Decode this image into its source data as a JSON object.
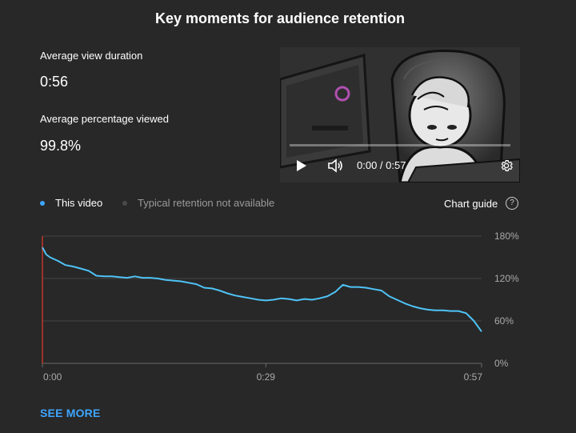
{
  "title": "Key moments for audience retention",
  "stats": {
    "avg_view_duration_label": "Average view duration",
    "avg_view_duration_value": "0:56",
    "avg_pct_viewed_label": "Average percentage viewed",
    "avg_pct_viewed_value": "99.8%"
  },
  "video": {
    "time_display": "0:00 / 0:57",
    "progress_fraction": 0.0,
    "icons": [
      "play-icon",
      "volume-icon",
      "settings-gear-icon"
    ]
  },
  "legend": {
    "this_video": "This video",
    "typical": "Typical retention not available",
    "this_video_color": "#3ea6ff",
    "typical_color": "#4a4a4a",
    "chart_guide": "Chart guide",
    "help_icon": "?"
  },
  "chart_data": {
    "type": "line",
    "title": "",
    "xlabel": "",
    "ylabel": "",
    "x_ticks": [
      "0:00",
      "0:29",
      "0:57"
    ],
    "y_ticks": [
      "180%",
      "120%",
      "60%",
      "0%"
    ],
    "xlim": [
      0,
      57
    ],
    "ylim": [
      0,
      180
    ],
    "grid": true,
    "line_color": "#4fc3f7",
    "marker_color": "#c0392b",
    "series": [
      {
        "name": "This video",
        "x": [
          0,
          0.5,
          1,
          2,
          3,
          4,
          5,
          6,
          7,
          8,
          9,
          10,
          11,
          12,
          13,
          14,
          15,
          16,
          17,
          18,
          19,
          20,
          21,
          22,
          23,
          24,
          25,
          26,
          27,
          28,
          29,
          30,
          31,
          32,
          33,
          34,
          35,
          36,
          37,
          38,
          39,
          40,
          41,
          42,
          43,
          44,
          45,
          46,
          47,
          48,
          49,
          50,
          51,
          52,
          53,
          54,
          55,
          56,
          57
        ],
        "y": [
          164,
          154,
          150,
          145,
          139,
          137,
          134,
          131,
          124,
          123,
          123,
          122,
          121,
          123,
          121,
          121,
          120,
          118,
          117,
          116,
          114,
          112,
          107,
          106,
          103,
          99,
          96,
          94,
          92,
          90,
          89,
          90,
          92,
          91,
          89,
          91,
          90,
          92,
          95,
          101,
          111,
          108,
          108,
          107,
          105,
          103,
          95,
          90,
          85,
          81,
          78,
          76,
          75,
          75,
          74,
          74,
          71,
          60,
          45
        ]
      }
    ]
  },
  "see_more": "SEE MORE"
}
